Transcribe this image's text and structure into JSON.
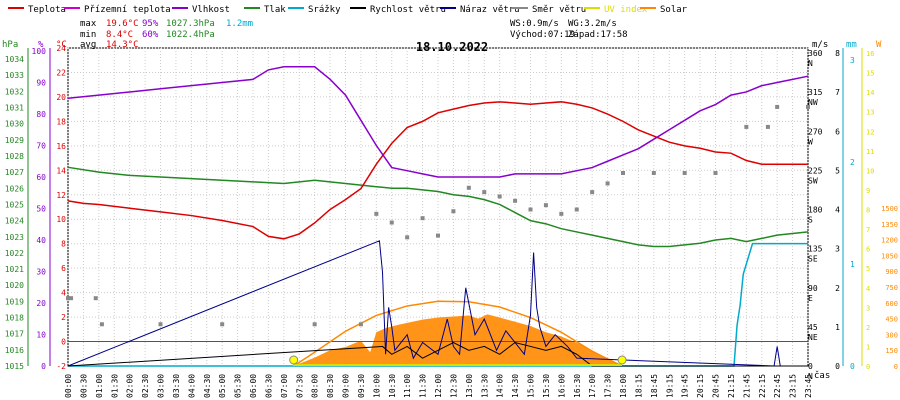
{
  "chart_data": {
    "type": "line",
    "title": "18.10.2022",
    "legend": [
      {
        "name": "Teplota",
        "color": "#dd0000"
      },
      {
        "name": "Přízemní teplota",
        "color": "#cc00cc"
      },
      {
        "name": "Vlhkost",
        "color": "#8800cc"
      },
      {
        "name": "Tlak",
        "color": "#228822"
      },
      {
        "name": "Srážky",
        "color": "#00aacc"
      },
      {
        "name": "Rychlost větru",
        "color": "#000000"
      },
      {
        "name": "Náraz větru",
        "color": "#000088"
      },
      {
        "name": "Směr větru",
        "color": "#888888"
      },
      {
        "name": "UV index",
        "color": "#dddd00"
      },
      {
        "name": "Solar",
        "color": "#ff8800"
      }
    ],
    "stats": {
      "max_label": "max",
      "max_temp": "19.6°C",
      "max_hum": "95%",
      "max_press": "1027.3hPa",
      "max_rain": "1.2mm",
      "min_label": "min",
      "min_temp": "8.4°C",
      "min_hum": "60%",
      "min_press": "1022.4hPa",
      "avg_label": "avg",
      "avg_temp": "14.3°C"
    },
    "wind_info": {
      "ws": "WS:0.9m/s",
      "wg": "WG:3.2m/s",
      "sunrise": "Východ:07:19",
      "sunset": "Západ:17:58"
    },
    "axes": {
      "hpa": {
        "unit": "hPa",
        "color": "#228822",
        "min": 1015,
        "max": 1035,
        "ticks": [
          1015,
          1016,
          1017,
          1018,
          1019,
          1020,
          1021,
          1022,
          1023,
          1024,
          1025,
          1026,
          1027,
          1028,
          1029,
          1030,
          1031,
          1032,
          1033,
          1034
        ]
      },
      "pct": {
        "unit": "%",
        "color": "#8800cc",
        "ticks": [
          0,
          10,
          20,
          30,
          40,
          50,
          60,
          70,
          80,
          90,
          100
        ]
      },
      "temp": {
        "unit": "°C",
        "color": "#dd0000",
        "min": -2,
        "max": 24,
        "ticks": [
          -2,
          0,
          2,
          4,
          6,
          8,
          10,
          12,
          14,
          16,
          18,
          20,
          22,
          24
        ]
      },
      "dir": {
        "ticks": [
          "0",
          "45",
          "90",
          "135",
          "180",
          "225",
          "270",
          "315",
          "360"
        ],
        "labels": [
          "N",
          "NE",
          "E",
          "SE",
          "S",
          "SW",
          "W",
          "NW",
          "N"
        ]
      },
      "ms": {
        "unit": "m/s",
        "ticks": [
          0,
          1,
          2,
          3,
          4,
          5,
          6,
          7,
          8
        ]
      },
      "mm": {
        "unit": "mm",
        "color": "#00aacc",
        "ticks": [
          0,
          1,
          2,
          3
        ]
      },
      "uv": {
        "unit": "W",
        "color": "#dddd00",
        "ticks": [
          0,
          1,
          2,
          3,
          4,
          5,
          6,
          7,
          8,
          9,
          10,
          11,
          12,
          13,
          14,
          15,
          16
        ]
      },
      "w": {
        "color": "#ff8800",
        "ticks": [
          0,
          150,
          300,
          450,
          600,
          750,
          900,
          1050,
          1200,
          1350,
          1500
        ]
      },
      "x": {
        "label": "čas",
        "ticks": [
          "00:00",
          "00:30",
          "01:00",
          "01:30",
          "02:00",
          "02:30",
          "03:00",
          "03:30",
          "04:00",
          "04:30",
          "05:00",
          "05:30",
          "06:00",
          "06:30",
          "07:00",
          "07:30",
          "08:00",
          "08:30",
          "09:00",
          "09:30",
          "10:00",
          "10:30",
          "11:00",
          "11:30",
          "12:00",
          "12:30",
          "13:00",
          "13:30",
          "14:00",
          "14:30",
          "15:00",
          "15:30",
          "16:00",
          "16:30",
          "17:00",
          "17:30",
          "18:00",
          "18:15",
          "18:45",
          "19:15",
          "19:45",
          "20:15",
          "20:45",
          "21:15",
          "21:45",
          "22:15",
          "22:45",
          "23:15",
          "23:45"
        ]
      }
    },
    "x_hours": [
      0,
      1,
      2,
      3,
      4,
      5,
      6,
      7,
      8,
      9,
      10,
      11,
      12,
      13,
      14,
      15,
      16,
      17,
      18,
      19,
      20,
      21,
      22,
      23,
      24
    ],
    "series": [
      {
        "name": "Teplota",
        "color": "#dd0000",
        "x": [
          0,
          0.5,
          1,
          2,
          3,
          4,
          5,
          6,
          6.5,
          7,
          7.5,
          8,
          8.5,
          9,
          9.5,
          10,
          10.5,
          11,
          11.5,
          12,
          12.5,
          13,
          13.5,
          14,
          14.5,
          15,
          15.5,
          16,
          16.5,
          17,
          17.5,
          18,
          18.5,
          19,
          19.5,
          20,
          20.5,
          21,
          21.5,
          22,
          22.5,
          23,
          23.5,
          24
        ],
        "y": [
          11.5,
          11.3,
          11.2,
          10.9,
          10.6,
          10.3,
          9.9,
          9.4,
          8.6,
          8.4,
          8.8,
          9.7,
          10.8,
          11.6,
          12.5,
          14.5,
          16.2,
          17.5,
          18.0,
          18.7,
          19.0,
          19.3,
          19.5,
          19.6,
          19.5,
          19.4,
          19.5,
          19.6,
          19.4,
          19.1,
          18.6,
          18.0,
          17.3,
          16.8,
          16.3,
          16.0,
          15.8,
          15.5,
          15.4,
          14.8,
          14.5,
          14.5,
          14.5,
          14.5
        ]
      },
      {
        "name": "Vlhkost",
        "color": "#8800cc",
        "x": [
          0,
          1,
          2,
          3,
          4,
          5,
          6,
          6.5,
          7,
          7.5,
          8,
          8.5,
          9,
          9.5,
          10,
          10.5,
          11,
          11.5,
          12,
          12.5,
          13,
          13.5,
          14,
          14.5,
          15,
          15.5,
          16,
          16.5,
          17,
          17.5,
          18,
          18.5,
          19,
          19.5,
          20,
          20.5,
          21,
          21.5,
          22,
          22.5,
          23,
          23.5,
          24
        ],
        "y": [
          85,
          86,
          87,
          88,
          89,
          90,
          91,
          94,
          95,
          95,
          95,
          91,
          86,
          78,
          70,
          63,
          62,
          61,
          60,
          60,
          60,
          60,
          60,
          61,
          61,
          61,
          61,
          62,
          63,
          65,
          67,
          69,
          72,
          75,
          78,
          81,
          83,
          86,
          87,
          89,
          90,
          91,
          92
        ]
      },
      {
        "name": "Tlak",
        "color": "#228822",
        "x": [
          0,
          1,
          2,
          3,
          4,
          5,
          6,
          7,
          8,
          9,
          10,
          10.5,
          11,
          11.5,
          12,
          12.5,
          13,
          13.5,
          14,
          14.5,
          15,
          15.5,
          16,
          16.5,
          17,
          17.5,
          18,
          18.5,
          19,
          19.5,
          20,
          20.5,
          21,
          21.5,
          22,
          22.5,
          23,
          23.5,
          24
        ],
        "y": [
          1027.3,
          1027.0,
          1026.8,
          1026.7,
          1026.6,
          1026.5,
          1026.4,
          1026.3,
          1026.5,
          1026.3,
          1026.1,
          1026.0,
          1026.0,
          1025.9,
          1025.8,
          1025.6,
          1025.5,
          1025.3,
          1025.0,
          1024.5,
          1024.0,
          1023.8,
          1023.5,
          1023.3,
          1023.1,
          1022.9,
          1022.7,
          1022.5,
          1022.4,
          1022.4,
          1022.5,
          1022.6,
          1022.8,
          1022.9,
          1022.7,
          1022.9,
          1023.1,
          1023.2,
          1023.3
        ]
      },
      {
        "name": "Srážky",
        "color": "#00aacc",
        "x": [
          0,
          21.6,
          21.7,
          21.8,
          21.9,
          22.0,
          22.2,
          24
        ],
        "y": [
          0,
          0,
          0.4,
          0.6,
          0.9,
          1.0,
          1.2,
          1.2
        ]
      },
      {
        "name": "Směr větru",
        "color": "#888888",
        "x": [
          0,
          0.1,
          0.9,
          1.1,
          3,
          5,
          8,
          9.5,
          10,
          10.5,
          11,
          11.5,
          12,
          12.5,
          13,
          13.5,
          14,
          14.5,
          15,
          15.5,
          16,
          16.5,
          17,
          17.5,
          18,
          19,
          20,
          21,
          22,
          22.7,
          23,
          24
        ],
        "y": [
          78,
          78,
          78,
          48,
          48,
          48,
          48,
          48,
          175,
          165,
          148,
          170,
          150,
          178,
          205,
          200,
          195,
          190,
          180,
          185,
          175,
          180,
          200,
          210,
          222,
          222,
          222,
          222,
          275,
          275,
          298,
          298
        ]
      },
      {
        "name": "Náraz větru",
        "color": "#000088",
        "x": [
          0,
          10.1,
          10.2,
          10.3,
          10.4,
          10.5,
          10.6,
          11.0,
          11.2,
          11.5,
          12.0,
          12.3,
          12.5,
          12.7,
          12.9,
          13.2,
          13.5,
          13.9,
          14.2,
          14.8,
          15.0,
          15.1,
          15.2,
          15.3,
          15.5,
          15.8,
          16.2,
          16.5,
          22.9,
          23.0,
          23.1,
          24
        ],
        "y": [
          0,
          3.2,
          2.4,
          0.3,
          1.5,
          1.0,
          0.4,
          0.8,
          0.2,
          0.6,
          0.3,
          1.2,
          0.5,
          0.3,
          2.0,
          0.8,
          1.2,
          0.4,
          0.9,
          0.3,
          1.3,
          2.9,
          1.5,
          1.0,
          0.5,
          0.8,
          0.5,
          0.2,
          0,
          0.5,
          0,
          0
        ]
      },
      {
        "name": "Rychlost větru",
        "color": "#000000",
        "x": [
          0,
          10.2,
          10.5,
          11.0,
          11.5,
          12.0,
          12.5,
          13.0,
          13.5,
          14.0,
          14.5,
          15.0,
          15.5,
          16.0,
          16.5,
          17,
          24
        ],
        "y": [
          0,
          0.5,
          0.3,
          0.5,
          0.2,
          0.4,
          0.6,
          0.4,
          0.5,
          0.3,
          0.6,
          0.5,
          0.4,
          0.5,
          0.3,
          0,
          0
        ]
      },
      {
        "name": "UV index",
        "color": "#dddd00",
        "x": [
          0,
          7.3,
          7.31,
          17.96,
          17.97,
          24
        ],
        "y": [
          0,
          0,
          0,
          0,
          0,
          0
        ]
      },
      {
        "name": "Solar",
        "color": "#ff8800",
        "x": [
          7.32,
          8,
          9,
          10,
          11,
          12,
          13,
          14,
          15,
          16,
          17,
          17.97
        ],
        "y": [
          0,
          130,
          330,
          480,
          570,
          615,
          610,
          560,
          460,
          320,
          140,
          0
        ]
      }
    ],
    "solar_fill": {
      "x": [
        7.32,
        8,
        8.5,
        9,
        9.5,
        9.8,
        10.0,
        10.3,
        10.7,
        11,
        11.5,
        12,
        12.5,
        13,
        13.3,
        13.6,
        14,
        14.5,
        15,
        15.5,
        16,
        16.5,
        17,
        17.5,
        17.97
      ],
      "y": [
        0,
        80,
        150,
        180,
        240,
        130,
        320,
        360,
        390,
        410,
        440,
        460,
        470,
        480,
        450,
        490,
        460,
        420,
        380,
        320,
        280,
        220,
        150,
        70,
        0
      ]
    },
    "dew_line": {
      "name": "Přízemní teplota",
      "y": 0,
      "color": "#cc00cc"
    },
    "sun_markers": [
      7.32,
      17.97
    ]
  }
}
